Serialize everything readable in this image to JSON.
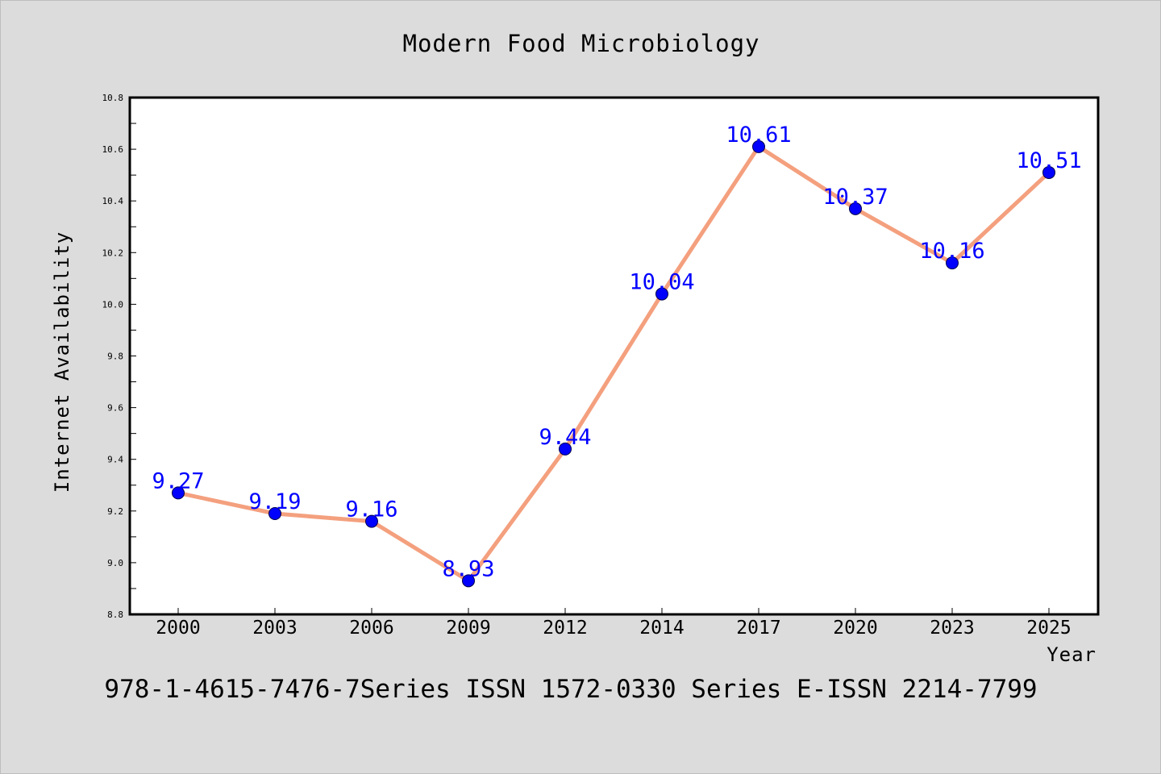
{
  "chart_data": {
    "type": "line",
    "title": "Modern Food Microbiology",
    "xlabel": "Year",
    "ylabel": "Internet Availability",
    "categories": [
      "2000",
      "2003",
      "2006",
      "2009",
      "2012",
      "2014",
      "2017",
      "2020",
      "2023",
      "2025"
    ],
    "values": [
      9.27,
      9.19,
      9.16,
      8.93,
      9.44,
      10.04,
      10.61,
      10.37,
      10.16,
      10.51
    ],
    "data_labels": [
      "9.27",
      "9.19",
      "9.16",
      "8.93",
      "9.44",
      "10.04",
      "10.61",
      "10.37",
      "10.16",
      "10.51"
    ],
    "ylim": [
      8.8,
      10.8
    ],
    "y_ticks": [
      "8.8",
      "9.0",
      "9.2",
      "9.4",
      "9.6",
      "9.8",
      "10.0",
      "10.2",
      "10.4",
      "10.6",
      "10.8"
    ],
    "grid": false,
    "legend": "none",
    "colors": {
      "line": "#f4a07e",
      "marker": "#0000ff",
      "data_label": "#0000ff",
      "background": "#dcdcdc",
      "plot_area": "#ffffff"
    }
  },
  "footer": {
    "text": "978-1-4615-7476-7Series ISSN 1572-0330 Series E-ISSN 2214-7799"
  }
}
